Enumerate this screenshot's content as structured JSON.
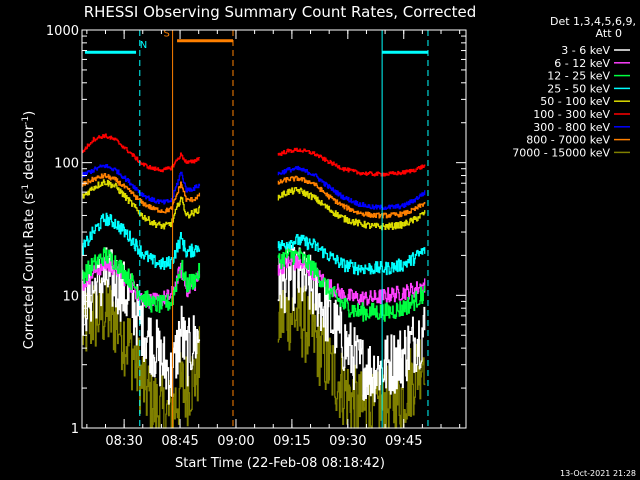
{
  "chart_data": {
    "type": "line",
    "title": "RHESSI Observing Summary Count Rates, Corrected",
    "xlabel": "Start Time (22-Feb-08 08:18:42)",
    "ylabel_main": "Corrected Count Rate (s",
    "ylabel_sup1": "-1",
    "ylabel_mid": " detector",
    "ylabel_sup2": "-1",
    "ylabel_end": ")",
    "yscale": "log",
    "ylim": [
      1,
      1000
    ],
    "xlim_minutes": [
      0,
      103
    ],
    "y_ticks": [
      {
        "value": 1,
        "label": "1"
      },
      {
        "value": 10,
        "label": "10"
      },
      {
        "value": 100,
        "label": "100"
      },
      {
        "value": 1000,
        "label": "1000"
      }
    ],
    "x_ticks": [
      {
        "value": 11.3,
        "label": "08:30"
      },
      {
        "value": 26.3,
        "label": "08:45"
      },
      {
        "value": 41.3,
        "label": "09:00"
      },
      {
        "value": 56.3,
        "label": "09:15"
      },
      {
        "value": 71.3,
        "label": "09:30"
      },
      {
        "value": 86.3,
        "label": "09:45"
      }
    ],
    "legend_header": [
      "Det 1,3,4,5,6,9,",
      "Att 0"
    ],
    "legend_placement": "right",
    "series": [
      {
        "name": "3 - 6 keV",
        "color": "#ffffff",
        "anchors": [
          [
            0,
            8
          ],
          [
            3,
            11
          ],
          [
            6,
            13.5
          ],
          [
            9,
            12.5
          ],
          [
            13,
            9
          ],
          [
            16,
            6
          ],
          [
            19,
            4.2
          ],
          [
            22,
            3
          ],
          [
            24,
            2.4
          ],
          [
            26.5,
            5.5
          ],
          [
            28,
            3.5
          ],
          [
            30,
            4.5
          ],
          [
            31.5,
            5
          ]
        ],
        "anchors2": [
          [
            52.5,
            12
          ],
          [
            55,
            13.5
          ],
          [
            58,
            13.5
          ],
          [
            62,
            11
          ],
          [
            66,
            7
          ],
          [
            70,
            4.5
          ],
          [
            74,
            3
          ],
          [
            78,
            2.7
          ],
          [
            82,
            3
          ],
          [
            86,
            3.5
          ],
          [
            89,
            4.5
          ],
          [
            92,
            5.5
          ]
        ],
        "noise": 0.25
      },
      {
        "name": "6 - 12 keV",
        "color": "#ff40ff",
        "anchors": [
          [
            0,
            12
          ],
          [
            3,
            15
          ],
          [
            6,
            17
          ],
          [
            9,
            16
          ],
          [
            13,
            12
          ],
          [
            16,
            9.5
          ],
          [
            19,
            9
          ],
          [
            22,
            9.5
          ],
          [
            24,
            10
          ],
          [
            26.5,
            16
          ],
          [
            28,
            11
          ],
          [
            30,
            12
          ],
          [
            31.5,
            14
          ]
        ],
        "anchors2": [
          [
            52.5,
            16
          ],
          [
            55,
            17.5
          ],
          [
            58,
            17.5
          ],
          [
            62,
            15
          ],
          [
            66,
            12
          ],
          [
            70,
            10
          ],
          [
            74,
            9.5
          ],
          [
            78,
            9.5
          ],
          [
            82,
            10
          ],
          [
            86,
            10.5
          ],
          [
            89,
            11
          ],
          [
            92,
            12
          ]
        ],
        "noise": 0.06
      },
      {
        "name": "12 - 25 keV",
        "color": "#00ff40",
        "anchors": [
          [
            0,
            14
          ],
          [
            3,
            17
          ],
          [
            6,
            20
          ],
          [
            9,
            18
          ],
          [
            13,
            13
          ],
          [
            16,
            10
          ],
          [
            19,
            8.5
          ],
          [
            22,
            8.5
          ],
          [
            24,
            9
          ],
          [
            26.5,
            17
          ],
          [
            28,
            12
          ],
          [
            30,
            13
          ],
          [
            31.5,
            15
          ]
        ],
        "anchors2": [
          [
            52.5,
            18
          ],
          [
            55,
            20
          ],
          [
            58,
            20
          ],
          [
            62,
            16
          ],
          [
            66,
            11
          ],
          [
            70,
            8.5
          ],
          [
            74,
            7.5
          ],
          [
            78,
            7.5
          ],
          [
            82,
            7.5
          ],
          [
            86,
            8
          ],
          [
            89,
            9
          ],
          [
            92,
            10.5
          ]
        ],
        "noise": 0.07
      },
      {
        "name": "25 - 50 keV",
        "color": "#00ffff",
        "anchors": [
          [
            0,
            22
          ],
          [
            3,
            30
          ],
          [
            6,
            38
          ],
          [
            9,
            35
          ],
          [
            13,
            27
          ],
          [
            16,
            21
          ],
          [
            19,
            18
          ],
          [
            22,
            17
          ],
          [
            24,
            18
          ],
          [
            26.5,
            27
          ],
          [
            28,
            21
          ],
          [
            30,
            22
          ],
          [
            31.5,
            24
          ]
        ],
        "anchors2": [
          [
            52.5,
            23
          ],
          [
            55,
            25
          ],
          [
            58,
            26
          ],
          [
            62,
            24
          ],
          [
            66,
            20
          ],
          [
            70,
            17
          ],
          [
            74,
            16
          ],
          [
            78,
            16
          ],
          [
            82,
            16
          ],
          [
            86,
            17
          ],
          [
            89,
            19
          ],
          [
            92,
            22
          ]
        ],
        "noise": 0.05
      },
      {
        "name": "50 - 100 keV",
        "color": "#dddd00",
        "anchors": [
          [
            0,
            55
          ],
          [
            3,
            65
          ],
          [
            6,
            72
          ],
          [
            9,
            66
          ],
          [
            13,
            50
          ],
          [
            16,
            40
          ],
          [
            19,
            35
          ],
          [
            22,
            33
          ],
          [
            24,
            35
          ],
          [
            26.5,
            55
          ],
          [
            28,
            40
          ],
          [
            30,
            42
          ],
          [
            31.5,
            45
          ]
        ],
        "anchors2": [
          [
            52.5,
            55
          ],
          [
            55,
            60
          ],
          [
            58,
            62
          ],
          [
            62,
            55
          ],
          [
            66,
            45
          ],
          [
            70,
            38
          ],
          [
            74,
            35
          ],
          [
            78,
            33
          ],
          [
            82,
            33
          ],
          [
            86,
            34
          ],
          [
            89,
            37
          ],
          [
            92,
            42
          ]
        ],
        "noise": 0.025
      },
      {
        "name": "100 - 300 keV",
        "color": "#ff0000",
        "anchors": [
          [
            0,
            120
          ],
          [
            3,
            150
          ],
          [
            6,
            160
          ],
          [
            9,
            148
          ],
          [
            13,
            118
          ],
          [
            16,
            98
          ],
          [
            19,
            90
          ],
          [
            22,
            88
          ],
          [
            24,
            92
          ],
          [
            26.5,
            115
          ],
          [
            28,
            100
          ],
          [
            30,
            102
          ],
          [
            31.5,
            110
          ]
        ],
        "anchors2": [
          [
            52.5,
            115
          ],
          [
            55,
            122
          ],
          [
            58,
            125
          ],
          [
            62,
            118
          ],
          [
            66,
            102
          ],
          [
            70,
            90
          ],
          [
            74,
            84
          ],
          [
            78,
            82
          ],
          [
            82,
            82
          ],
          [
            86,
            84
          ],
          [
            89,
            88
          ],
          [
            92,
            95
          ]
        ],
        "noise": 0.015
      },
      {
        "name": "300 - 800 keV",
        "color": "#0000ff",
        "anchors": [
          [
            0,
            80
          ],
          [
            3,
            88
          ],
          [
            6,
            95
          ],
          [
            9,
            88
          ],
          [
            13,
            70
          ],
          [
            16,
            58
          ],
          [
            19,
            52
          ],
          [
            22,
            50
          ],
          [
            24,
            52
          ],
          [
            26.5,
            85
          ],
          [
            28,
            62
          ],
          [
            30,
            64
          ],
          [
            31.5,
            68
          ]
        ],
        "anchors2": [
          [
            52.5,
            82
          ],
          [
            55,
            88
          ],
          [
            58,
            90
          ],
          [
            62,
            82
          ],
          [
            66,
            66
          ],
          [
            70,
            55
          ],
          [
            74,
            49
          ],
          [
            78,
            46
          ],
          [
            82,
            46
          ],
          [
            86,
            47
          ],
          [
            89,
            52
          ],
          [
            92,
            60
          ]
        ],
        "noise": 0.018
      },
      {
        "name": "800 - 7000 keV",
        "color": "#ff8000",
        "anchors": [
          [
            0,
            68
          ],
          [
            3,
            75
          ],
          [
            6,
            80
          ],
          [
            9,
            74
          ],
          [
            13,
            60
          ],
          [
            16,
            50
          ],
          [
            19,
            45
          ],
          [
            22,
            43
          ],
          [
            24,
            45
          ],
          [
            26.5,
            70
          ],
          [
            28,
            52
          ],
          [
            30,
            53
          ],
          [
            31.5,
            57
          ]
        ],
        "anchors2": [
          [
            52.5,
            70
          ],
          [
            55,
            75
          ],
          [
            58,
            76
          ],
          [
            62,
            70
          ],
          [
            66,
            56
          ],
          [
            70,
            47
          ],
          [
            74,
            42
          ],
          [
            78,
            40
          ],
          [
            82,
            40
          ],
          [
            86,
            41
          ],
          [
            89,
            44
          ],
          [
            92,
            50
          ]
        ],
        "noise": 0.018
      },
      {
        "name": "7000 - 15000 keV",
        "color": "#808000",
        "anchors": [
          [
            0,
            5.5
          ],
          [
            3,
            7
          ],
          [
            6,
            7.5
          ],
          [
            9,
            6.5
          ],
          [
            13,
            4
          ],
          [
            16,
            2.3
          ],
          [
            19,
            1.5
          ],
          [
            22,
            1.2
          ],
          [
            24,
            1.3
          ],
          [
            26.5,
            2
          ],
          [
            28,
            2
          ],
          [
            30,
            2.5
          ],
          [
            31.5,
            3
          ]
        ],
        "anchors2": [
          [
            52.5,
            6.5
          ],
          [
            55,
            7.5
          ],
          [
            58,
            7
          ],
          [
            62,
            5
          ],
          [
            66,
            3
          ],
          [
            70,
            2
          ],
          [
            74,
            1.4
          ],
          [
            78,
            1.3
          ],
          [
            82,
            1.5
          ],
          [
            86,
            1.8
          ],
          [
            89,
            2.5
          ],
          [
            92,
            4
          ]
        ],
        "noise": 0.3
      }
    ],
    "gaps_minutes": [
      [
        31.5,
        52.5
      ]
    ],
    "annotations": [
      {
        "label": "N",
        "color": "#00ffff",
        "bar_start": 0.8,
        "bar_end": 14.5,
        "bar2_start": 80.5,
        "bar2_end": 92.8,
        "y_value": 680,
        "label_at": 16.5,
        "dashed_at": [
          15.5,
          92.8
        ],
        "solid_at": [
          80.5
        ]
      },
      {
        "label": "S",
        "color": "#ff8000",
        "bar_start": 25.5,
        "bar_end": 40.5,
        "y_value": 830,
        "label_at": 22.7,
        "solid_at": [
          24.3
        ],
        "dashed_at": [
          40.5
        ]
      }
    ],
    "timestamp": "13-Oct-2021 21:28"
  }
}
